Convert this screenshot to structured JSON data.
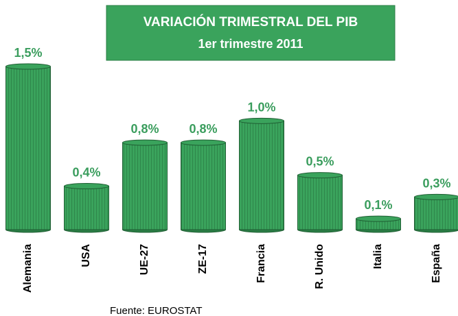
{
  "chart_data": {
    "type": "bar",
    "title": "VARIACIÓN TRIMESTRAL DEL PIB",
    "subtitle": "1er trimestre 2011",
    "categories": [
      "Alemania",
      "USA",
      "UE-27",
      "ZE-17",
      "Francia",
      "R. Unido",
      "Italia",
      "España"
    ],
    "values": [
      1.5,
      0.4,
      0.8,
      0.8,
      1.0,
      0.5,
      0.1,
      0.3
    ],
    "value_labels": [
      "1,5%",
      "0,4%",
      "0,8%",
      "0,8%",
      "1,0%",
      "0,5%",
      "0,1%",
      "0,3%"
    ],
    "color": "#3aa35c",
    "source": "Fuente: EUROSTAT"
  }
}
